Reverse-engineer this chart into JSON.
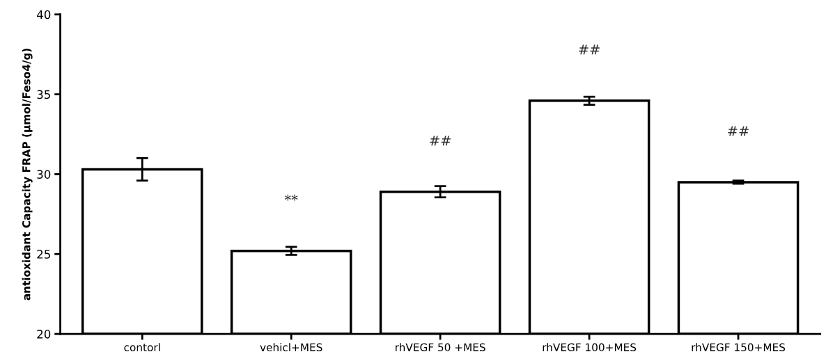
{
  "chart_data": {
    "type": "bar",
    "ylabel": "antioxidant Capacity FRAP (µmol/Feso4/g)",
    "categories": [
      "contorl",
      "vehicl+MES",
      "rhVEGF 50 +MES",
      "rhVEGF 100+MES",
      "rhVEGF 150+MES"
    ],
    "values": [
      30.3,
      25.2,
      28.9,
      34.6,
      29.5
    ],
    "errors": [
      0.7,
      0.25,
      0.35,
      0.25,
      0.1
    ],
    "color": "#ffffff",
    "ylim": [
      20,
      40
    ],
    "yticks": [
      20,
      25,
      30,
      35,
      40
    ],
    "grid": false,
    "annotations": [
      "**",
      "##",
      "##",
      "##"
    ]
  }
}
